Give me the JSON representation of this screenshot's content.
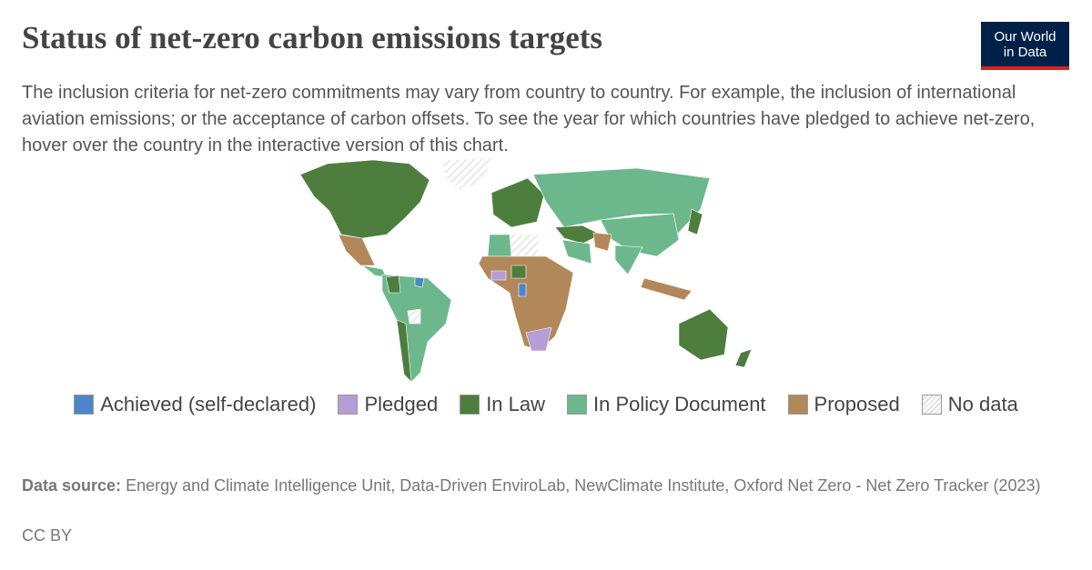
{
  "header": {
    "title": "Status of net-zero carbon emissions targets",
    "subtitle": "The inclusion criteria for net-zero commitments may vary from country to country. For example, the inclusion of international aviation emissions; or the acceptance of carbon offsets. To see the year for which countries have pledged to achieve net-zero, hover over the country in the interactive version of this chart."
  },
  "logo": [
    "Our World",
    "in Data"
  ],
  "legend": {
    "items": [
      {
        "name": "Achieved (self-declared)",
        "color": "#4c86c6"
      },
      {
        "name": "Pledged",
        "color": "#b59dd5"
      },
      {
        "name": "In Law",
        "color": "#4d7e3e"
      },
      {
        "name": "In Policy Document",
        "color": "#6cb88c"
      },
      {
        "name": "Proposed",
        "color": "#b2875a"
      },
      {
        "name": "No data"
      }
    ]
  },
  "footer": {
    "source_label": "Data source:",
    "source": "Energy and Climate Intelligence Unit, Data-Driven EnviroLab, NewClimate Institute, Oxford Net Zero - Net Zero Tracker (2023)",
    "license": "CC BY"
  }
}
